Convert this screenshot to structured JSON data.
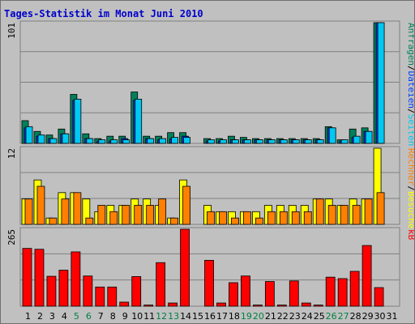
{
  "chart_data": [
    {
      "panel": "top",
      "type": "bar",
      "title": "Tages-Statistik im Monat Juni 2010",
      "ymax_label": "101",
      "ylim": [
        0,
        101
      ],
      "legend_vertical": [
        "Anfragen",
        "/",
        "Dateien",
        "/",
        "Seiten"
      ],
      "categories": [
        "1",
        "2",
        "3",
        "4",
        "5",
        "6",
        "7",
        "8",
        "9",
        "10",
        "11",
        "12",
        "13",
        "14",
        "15",
        "16",
        "17",
        "18",
        "19",
        "20",
        "21",
        "22",
        "23",
        "24",
        "25",
        "26",
        "27",
        "28",
        "29",
        "30",
        "31"
      ],
      "series": [
        {
          "name": "Anfragen",
          "values": [
            19,
            10,
            7,
            12,
            41,
            8,
            4,
            6,
            6,
            43,
            6,
            6,
            9,
            9,
            0,
            4,
            4,
            6,
            5,
            4,
            4,
            4,
            4,
            4,
            4,
            14,
            3,
            12,
            13,
            101,
            0
          ]
        },
        {
          "name": "Dateien",
          "values": [
            13,
            6,
            4,
            8,
            36,
            4,
            2,
            2,
            4,
            36,
            4,
            3,
            4,
            6,
            0,
            2,
            2,
            3,
            3,
            3,
            3,
            3,
            3,
            3,
            3,
            13,
            2,
            5,
            10,
            101,
            0
          ]
        },
        {
          "name": "Seiten",
          "values": [
            14,
            7,
            4,
            8,
            37,
            4,
            3,
            3,
            3,
            37,
            4,
            4,
            5,
            5,
            0,
            3,
            3,
            3,
            3,
            3,
            3,
            3,
            3,
            3,
            3,
            13,
            3,
            6,
            10,
            101,
            0
          ]
        }
      ]
    },
    {
      "panel": "middle",
      "type": "bar",
      "ymax_label": "12",
      "ylim": [
        0,
        12
      ],
      "legend_vertical": [
        "Rechner",
        "/",
        "Besuche"
      ],
      "categories": [
        "1",
        "2",
        "3",
        "4",
        "5",
        "6",
        "7",
        "8",
        "9",
        "10",
        "11",
        "12",
        "13",
        "14",
        "15",
        "16",
        "17",
        "18",
        "19",
        "20",
        "21",
        "22",
        "23",
        "24",
        "25",
        "26",
        "27",
        "28",
        "29",
        "30",
        "31"
      ],
      "series": [
        {
          "name": "Besuche",
          "values": [
            4,
            7,
            1,
            5,
            5,
            4,
            2,
            3,
            3,
            4,
            4,
            3,
            1,
            7,
            0,
            3,
            2,
            2,
            2,
            2,
            3,
            3,
            3,
            3,
            4,
            4,
            3,
            4,
            4,
            12,
            0
          ]
        },
        {
          "name": "Rechner",
          "values": [
            4,
            6,
            1,
            4,
            5,
            1,
            3,
            2,
            3,
            3,
            3,
            4,
            1,
            6,
            0,
            2,
            2,
            1,
            2,
            1,
            2,
            2,
            2,
            2,
            4,
            3,
            3,
            3,
            4,
            5,
            0
          ]
        }
      ]
    },
    {
      "panel": "bottom",
      "type": "bar",
      "ymax_label": "265",
      "ylim": [
        0,
        265
      ],
      "legend_vertical": [
        "kB"
      ],
      "categories": [
        "1",
        "2",
        "3",
        "4",
        "5",
        "6",
        "7",
        "8",
        "9",
        "10",
        "11",
        "12",
        "13",
        "14",
        "15",
        "16",
        "17",
        "18",
        "19",
        "20",
        "21",
        "22",
        "23",
        "24",
        "25",
        "26",
        "27",
        "28",
        "29",
        "30",
        "31"
      ],
      "weekend_days": [
        "5",
        "6",
        "12",
        "13",
        "19",
        "20",
        "26",
        "27"
      ],
      "series": [
        {
          "name": "kB",
          "values": [
            199,
            196,
            103,
            124,
            187,
            104,
            66,
            66,
            14,
            102,
            4,
            150,
            11,
            265,
            0,
            158,
            11,
            81,
            104,
            4,
            85,
            4,
            87,
            11,
            4,
            100,
            95,
            120,
            209,
            64,
            0
          ]
        }
      ]
    }
  ],
  "colors": {
    "background": "#c0c0c0",
    "title": "#0000cc",
    "anfragen": "#00805c",
    "dateien": "#0040ff",
    "seiten": "#00c8f0",
    "besuche": "#ffff00",
    "rechner": "#ff8000",
    "kb": "#ff0000",
    "weekday_label": "#000000",
    "weekend_label": "#008040",
    "axis_line": "#808080"
  }
}
